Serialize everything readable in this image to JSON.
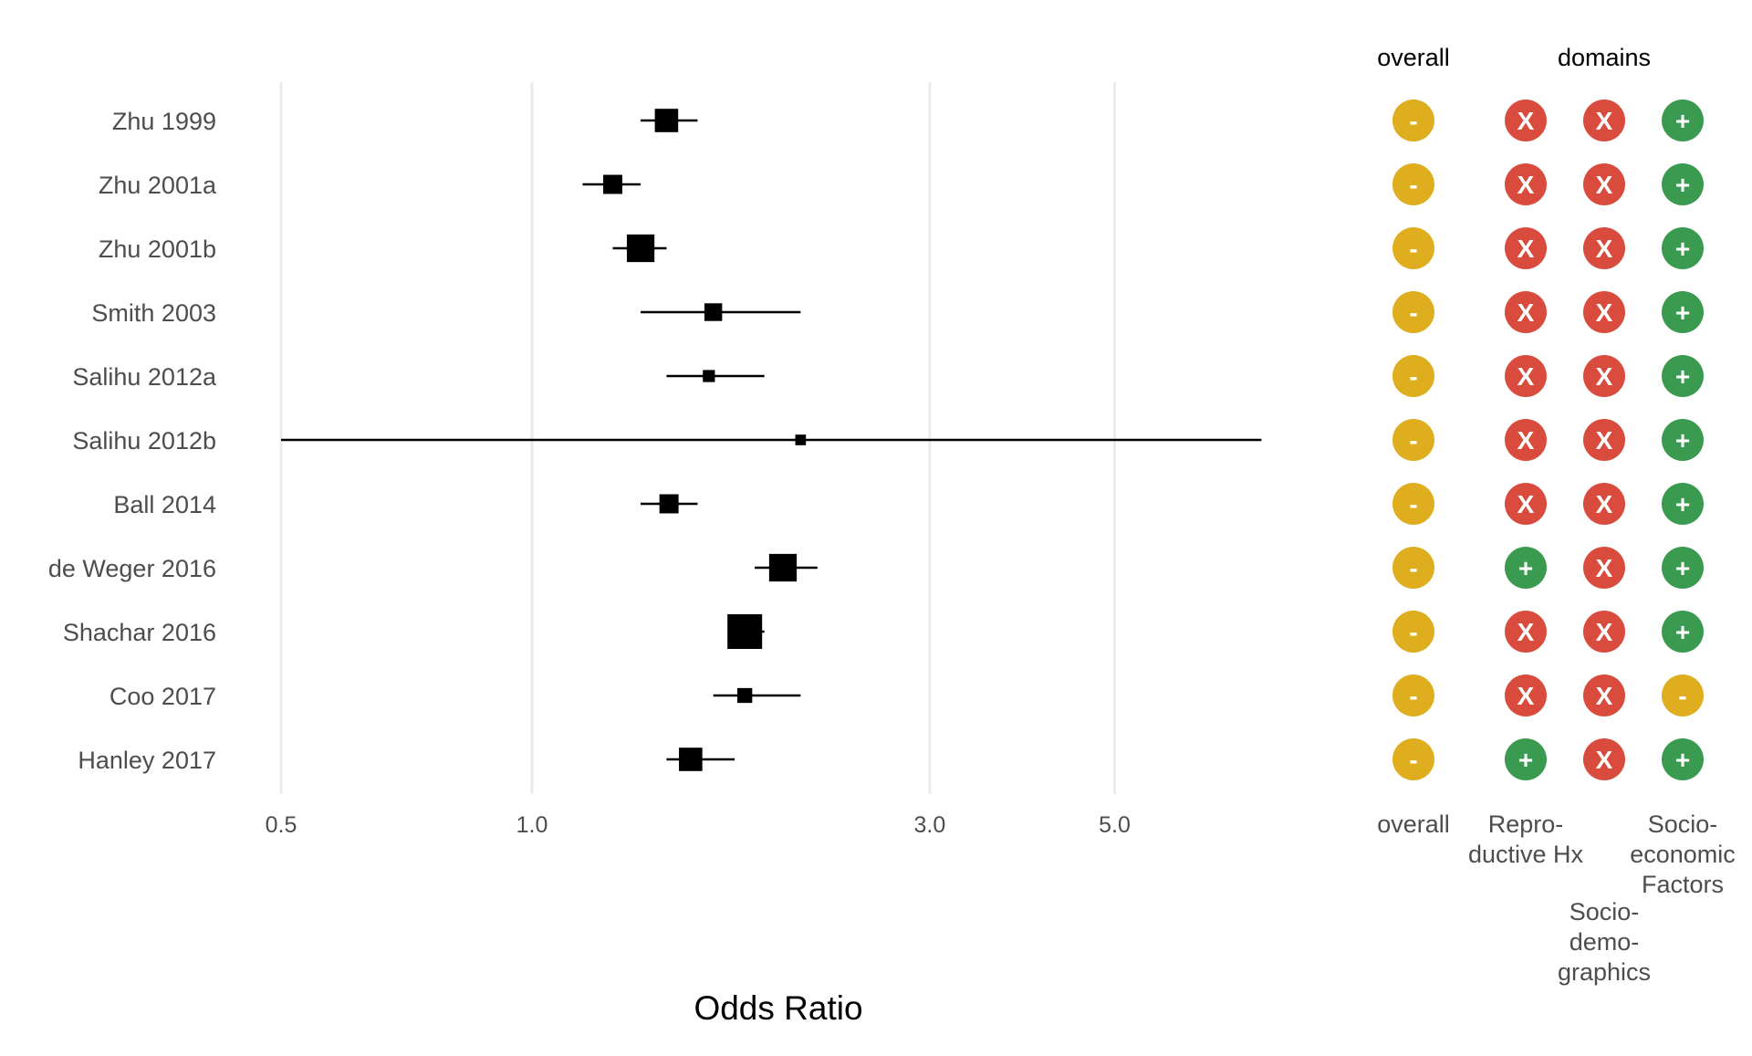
{
  "chart_data": {
    "type": "forest",
    "xlabel": "Odds Ratio",
    "x_scale": "log",
    "xlim": [
      0.5,
      7.5
    ],
    "x_ticks": [
      0.5,
      1.0,
      3.0,
      5.0
    ],
    "x_tick_labels": [
      "0.5",
      "1.0",
      "3.0",
      "5.0"
    ],
    "grid": true,
    "studies": [
      {
        "label": "Zhu 1999",
        "or": 1.45,
        "lower": 1.35,
        "upper": 1.58,
        "weight": 0.6
      },
      {
        "label": "Zhu 2001a",
        "or": 1.25,
        "lower": 1.15,
        "upper": 1.35,
        "weight": 0.45
      },
      {
        "label": "Zhu 2001b",
        "or": 1.35,
        "lower": 1.25,
        "upper": 1.45,
        "weight": 0.75
      },
      {
        "label": "Smith 2003",
        "or": 1.65,
        "lower": 1.35,
        "upper": 2.1,
        "weight": 0.4
      },
      {
        "label": "Salihu 2012a",
        "or": 1.63,
        "lower": 1.45,
        "upper": 1.9,
        "weight": 0.2
      },
      {
        "label": "Salihu 2012b",
        "or": 2.1,
        "lower": 0.5,
        "upper": 7.5,
        "weight": 0.15
      },
      {
        "label": "Ball 2014",
        "or": 1.46,
        "lower": 1.35,
        "upper": 1.58,
        "weight": 0.45
      },
      {
        "label": "de Weger 2016",
        "or": 2.0,
        "lower": 1.85,
        "upper": 2.2,
        "weight": 0.75
      },
      {
        "label": "Shachar 2016",
        "or": 1.8,
        "lower": 1.72,
        "upper": 1.9,
        "weight": 1.0
      },
      {
        "label": "Coo 2017",
        "or": 1.8,
        "lower": 1.65,
        "upper": 2.1,
        "weight": 0.3
      },
      {
        "label": "Hanley 2017",
        "or": 1.55,
        "lower": 1.45,
        "upper": 1.75,
        "weight": 0.6
      }
    ]
  },
  "risk_of_bias": {
    "headers": [
      "overall",
      "domains"
    ],
    "columns": [
      "overall",
      "Repro-\nductive Hx",
      "Socio-\ndemo-\ngraphics",
      "Socio-\neconomic\nFactors"
    ],
    "symbols": {
      "-": "#dfae1f",
      "X": "#d94c3d",
      "+": "#3a9a4f"
    },
    "ratings": [
      [
        "-",
        "X",
        "X",
        "+"
      ],
      [
        "-",
        "X",
        "X",
        "+"
      ],
      [
        "-",
        "X",
        "X",
        "+"
      ],
      [
        "-",
        "X",
        "X",
        "+"
      ],
      [
        "-",
        "X",
        "X",
        "+"
      ],
      [
        "-",
        "X",
        "X",
        "+"
      ],
      [
        "-",
        "X",
        "X",
        "+"
      ],
      [
        "-",
        "+",
        "X",
        "+"
      ],
      [
        "-",
        "X",
        "X",
        "+"
      ],
      [
        "-",
        "X",
        "X",
        "-"
      ],
      [
        "-",
        "+",
        "X",
        "+"
      ]
    ]
  }
}
